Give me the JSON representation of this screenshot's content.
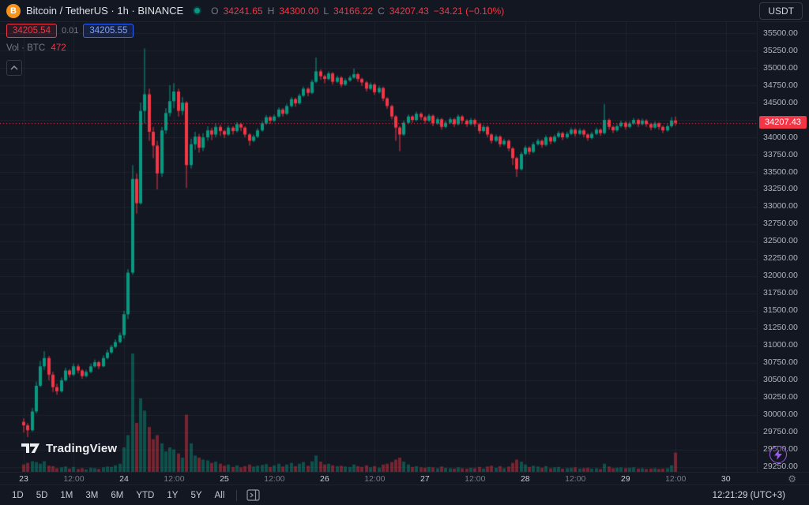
{
  "header": {
    "symbol_title": "Bitcoin / TetherUS · 1h · BINANCE",
    "currency_button": "USDT"
  },
  "legend": {
    "ohlc": {
      "o_label": "O",
      "o": "34241.65",
      "h_label": "H",
      "h": "34300.00",
      "l_label": "L",
      "l": "34166.22",
      "c_label": "C",
      "c": "34207.43",
      "change": "−34.21 (−0.10%)"
    },
    "bid": "34205.54",
    "spread": "0.01",
    "ask": "34205.55",
    "volume_label": "Vol · BTC",
    "volume_value": "472"
  },
  "price_axis": {
    "last_price": "34207.43"
  },
  "footer": {
    "ranges": [
      "1D",
      "5D",
      "1M",
      "3M",
      "6M",
      "YTD",
      "1Y",
      "5Y",
      "All"
    ],
    "clock": "12:21:29 (UTC+3)"
  },
  "logo_text": "TradingView",
  "chart_data": {
    "type": "candlestick",
    "title": "Bitcoin / TetherUS · 1h · BINANCE",
    "x_unit": "hour",
    "y_axis": {
      "min": 29250,
      "max": 35500,
      "step": 250
    },
    "last_price": 34207.43,
    "legend_position": "top-left",
    "grid": true,
    "colors": {
      "up": "#089981",
      "down": "#f23645",
      "vol_up": "rgba(8,153,129,0.45)",
      "vol_down": "rgba(242,54,69,0.45)",
      "accent_red": "#f23645",
      "accent_blue": "#2962ff",
      "bg": "#131722"
    },
    "time_ticks": [
      {
        "i": 0,
        "label": "23",
        "major": true
      },
      {
        "i": 12,
        "label": "12:00",
        "major": false
      },
      {
        "i": 24,
        "label": "24",
        "major": true
      },
      {
        "i": 36,
        "label": "12:00",
        "major": false
      },
      {
        "i": 48,
        "label": "25",
        "major": true
      },
      {
        "i": 60,
        "label": "12:00",
        "major": false
      },
      {
        "i": 72,
        "label": "26",
        "major": true
      },
      {
        "i": 84,
        "label": "12:00",
        "major": false
      },
      {
        "i": 96,
        "label": "27",
        "major": true
      },
      {
        "i": 108,
        "label": "12:00",
        "major": false
      },
      {
        "i": 120,
        "label": "28",
        "major": true
      },
      {
        "i": 132,
        "label": "12:00",
        "major": false
      },
      {
        "i": 144,
        "label": "29",
        "major": true
      },
      {
        "i": 156,
        "label": "12:00",
        "major": false
      },
      {
        "i": 168,
        "label": "30",
        "major": true
      }
    ],
    "candles": [
      [
        29900,
        29950,
        29750,
        29850,
        180
      ],
      [
        29850,
        29880,
        29680,
        29780,
        220
      ],
      [
        29780,
        30100,
        29760,
        30050,
        260
      ],
      [
        30050,
        30480,
        30020,
        30420,
        240
      ],
      [
        30420,
        30780,
        30400,
        30700,
        200
      ],
      [
        30700,
        30920,
        30650,
        30820,
        260
      ],
      [
        30820,
        30850,
        30500,
        30580,
        150
      ],
      [
        30580,
        30620,
        30330,
        30400,
        140
      ],
      [
        30400,
        30450,
        30290,
        30340,
        90
      ],
      [
        30340,
        30540,
        30320,
        30500,
        110
      ],
      [
        30500,
        30680,
        30480,
        30640,
        130
      ],
      [
        30640,
        30660,
        30540,
        30580,
        80
      ],
      [
        30580,
        30740,
        30560,
        30700,
        120
      ],
      [
        30700,
        30730,
        30600,
        30640,
        70
      ],
      [
        30640,
        30660,
        30520,
        30560,
        90
      ],
      [
        30560,
        30650,
        30540,
        30620,
        60
      ],
      [
        30620,
        30740,
        30600,
        30700,
        100
      ],
      [
        30700,
        30800,
        30680,
        30760,
        90
      ],
      [
        30760,
        30780,
        30660,
        30700,
        70
      ],
      [
        30700,
        30860,
        30690,
        30820,
        110
      ],
      [
        30820,
        30940,
        30800,
        30900,
        130
      ],
      [
        30900,
        31010,
        30880,
        30980,
        120
      ],
      [
        30980,
        31090,
        30960,
        31050,
        160
      ],
      [
        31050,
        31190,
        31030,
        31150,
        200
      ],
      [
        31150,
        31500,
        31100,
        31450,
        600
      ],
      [
        31450,
        32100,
        31380,
        32050,
        900
      ],
      [
        32050,
        33600,
        32020,
        33400,
        2900
      ],
      [
        33400,
        33480,
        32900,
        33050,
        1200
      ],
      [
        33050,
        34500,
        33030,
        34380,
        1800
      ],
      [
        34380,
        35280,
        34200,
        34620,
        1500
      ],
      [
        34620,
        34700,
        33950,
        34080,
        1100
      ],
      [
        34080,
        34150,
        33700,
        33880,
        800
      ],
      [
        33880,
        33950,
        33250,
        33480,
        900
      ],
      [
        33480,
        34150,
        33430,
        34100,
        700
      ],
      [
        34100,
        34420,
        34050,
        34350,
        500
      ],
      [
        34350,
        34750,
        34300,
        34520,
        600
      ],
      [
        34520,
        34780,
        34420,
        34660,
        550
      ],
      [
        34660,
        34700,
        34300,
        34380,
        450
      ],
      [
        34380,
        34580,
        34320,
        34500,
        350
      ],
      [
        34500,
        34520,
        33270,
        33600,
        1400
      ],
      [
        33600,
        33980,
        33550,
        33900,
        700
      ],
      [
        33900,
        34080,
        33820,
        34010,
        400
      ],
      [
        34010,
        34050,
        33780,
        33850,
        350
      ],
      [
        33850,
        34060,
        33800,
        34000,
        300
      ],
      [
        34000,
        34160,
        33950,
        34100,
        280
      ],
      [
        34100,
        34140,
        33960,
        34040,
        220
      ],
      [
        34040,
        34200,
        34000,
        34150,
        250
      ],
      [
        34150,
        34180,
        34020,
        34090,
        200
      ],
      [
        34090,
        34110,
        33990,
        34040,
        150
      ],
      [
        34040,
        34170,
        34020,
        34140,
        180
      ],
      [
        34140,
        34160,
        34040,
        34090,
        120
      ],
      [
        34090,
        34220,
        34070,
        34190,
        160
      ],
      [
        34190,
        34210,
        34090,
        34140,
        110
      ],
      [
        34140,
        34160,
        34000,
        34040,
        140
      ],
      [
        34040,
        34060,
        33880,
        33950,
        180
      ],
      [
        33950,
        34040,
        33930,
        34010,
        130
      ],
      [
        34010,
        34130,
        33990,
        34100,
        150
      ],
      [
        34100,
        34230,
        34080,
        34200,
        170
      ],
      [
        34200,
        34320,
        34180,
        34290,
        190
      ],
      [
        34290,
        34310,
        34190,
        34240,
        120
      ],
      [
        34240,
        34330,
        34220,
        34300,
        160
      ],
      [
        34300,
        34430,
        34280,
        34400,
        200
      ],
      [
        34400,
        34420,
        34300,
        34340,
        130
      ],
      [
        34340,
        34480,
        34320,
        34450,
        180
      ],
      [
        34450,
        34580,
        34430,
        34550,
        220
      ],
      [
        34550,
        34570,
        34440,
        34490,
        140
      ],
      [
        34490,
        34630,
        34470,
        34600,
        200
      ],
      [
        34600,
        34730,
        34580,
        34700,
        240
      ],
      [
        34700,
        34720,
        34590,
        34640,
        150
      ],
      [
        34640,
        34830,
        34620,
        34800,
        260
      ],
      [
        34800,
        35150,
        34780,
        34950,
        400
      ],
      [
        34950,
        34980,
        34830,
        34880,
        250
      ],
      [
        34880,
        34900,
        34780,
        34840,
        180
      ],
      [
        34840,
        34950,
        34820,
        34920,
        200
      ],
      [
        34920,
        34940,
        34760,
        34800,
        160
      ],
      [
        34800,
        34890,
        34780,
        34860,
        140
      ],
      [
        34860,
        34880,
        34720,
        34760,
        150
      ],
      [
        34760,
        34850,
        34740,
        34820,
        130
      ],
      [
        34820,
        34890,
        34800,
        34860,
        120
      ],
      [
        34860,
        34990,
        34840,
        34910,
        180
      ],
      [
        34910,
        34930,
        34800,
        34840,
        140
      ],
      [
        34840,
        34860,
        34740,
        34790,
        120
      ],
      [
        34790,
        34810,
        34660,
        34700,
        160
      ],
      [
        34700,
        34790,
        34680,
        34760,
        110
      ],
      [
        34760,
        34780,
        34610,
        34650,
        140
      ],
      [
        34650,
        34740,
        34630,
        34710,
        100
      ],
      [
        34710,
        34730,
        34520,
        34560,
        180
      ],
      [
        34560,
        34580,
        34410,
        34450,
        200
      ],
      [
        34450,
        34470,
        34260,
        34300,
        240
      ],
      [
        34300,
        34320,
        33950,
        34140,
        300
      ],
      [
        34140,
        34160,
        33800,
        34040,
        350
      ],
      [
        34040,
        34240,
        34020,
        34210,
        250
      ],
      [
        34210,
        34330,
        34190,
        34300,
        180
      ],
      [
        34300,
        34320,
        34210,
        34250,
        120
      ],
      [
        34250,
        34370,
        34230,
        34340,
        140
      ],
      [
        34340,
        34360,
        34250,
        34290,
        110
      ],
      [
        34290,
        34310,
        34200,
        34240,
        100
      ],
      [
        34240,
        34340,
        34220,
        34310,
        120
      ],
      [
        34310,
        34330,
        34160,
        34200,
        110
      ],
      [
        34200,
        34290,
        34180,
        34260,
        90
      ],
      [
        34260,
        34280,
        34110,
        34150,
        130
      ],
      [
        34150,
        34240,
        34130,
        34210,
        100
      ],
      [
        34210,
        34290,
        34190,
        34260,
        90
      ],
      [
        34260,
        34280,
        34150,
        34190,
        80
      ],
      [
        34190,
        34330,
        34170,
        34300,
        110
      ],
      [
        34300,
        34320,
        34200,
        34240,
        90
      ],
      [
        34240,
        34260,
        34150,
        34190,
        80
      ],
      [
        34190,
        34280,
        34170,
        34250,
        100
      ],
      [
        34250,
        34270,
        34150,
        34190,
        90
      ],
      [
        34190,
        34210,
        34050,
        34090,
        120
      ],
      [
        34090,
        34180,
        34070,
        34150,
        80
      ],
      [
        34150,
        34170,
        34000,
        34040,
        130
      ],
      [
        34040,
        34060,
        33910,
        33950,
        150
      ],
      [
        33950,
        34040,
        33930,
        34010,
        100
      ],
      [
        34010,
        34030,
        33860,
        33900,
        140
      ],
      [
        33900,
        33980,
        33880,
        33950,
        90
      ],
      [
        33950,
        33970,
        33800,
        33840,
        130
      ],
      [
        33840,
        33860,
        33600,
        33700,
        220
      ],
      [
        33700,
        33720,
        33430,
        33540,
        300
      ],
      [
        33540,
        33790,
        33520,
        33760,
        250
      ],
      [
        33760,
        33880,
        33740,
        33850,
        180
      ],
      [
        33850,
        33870,
        33750,
        33790,
        120
      ],
      [
        33790,
        33930,
        33770,
        33900,
        150
      ],
      [
        33900,
        33980,
        33880,
        33950,
        130
      ],
      [
        33950,
        33970,
        33850,
        33890,
        100
      ],
      [
        33890,
        34030,
        33870,
        34000,
        140
      ],
      [
        34000,
        34020,
        33900,
        33940,
        90
      ],
      [
        33940,
        34040,
        33920,
        34010,
        110
      ],
      [
        34010,
        34090,
        33990,
        34060,
        120
      ],
      [
        34060,
        34080,
        33960,
        34000,
        80
      ],
      [
        34000,
        34080,
        33980,
        34050,
        90
      ],
      [
        34050,
        34140,
        34030,
        34110,
        100
      ],
      [
        34110,
        34130,
        34010,
        34050,
        110
      ],
      [
        34050,
        34130,
        34030,
        34100,
        80
      ],
      [
        34100,
        34120,
        34000,
        34040,
        90
      ],
      [
        34040,
        34060,
        33950,
        33990,
        100
      ],
      [
        33990,
        34080,
        33970,
        34050,
        80
      ],
      [
        34050,
        34140,
        34030,
        34110,
        90
      ],
      [
        34110,
        34130,
        34020,
        34060,
        70
      ],
      [
        34060,
        34480,
        34040,
        34250,
        200
      ],
      [
        34250,
        34270,
        34110,
        34150,
        130
      ],
      [
        34150,
        34170,
        34060,
        34100,
        90
      ],
      [
        34100,
        34190,
        34080,
        34160,
        100
      ],
      [
        34160,
        34240,
        34140,
        34210,
        110
      ],
      [
        34210,
        34230,
        34110,
        34150,
        90
      ],
      [
        34150,
        34230,
        34130,
        34200,
        100
      ],
      [
        34200,
        34280,
        34180,
        34250,
        110
      ],
      [
        34250,
        34270,
        34150,
        34190,
        80
      ],
      [
        34190,
        34270,
        34170,
        34240,
        90
      ],
      [
        34240,
        34260,
        34150,
        34190,
        70
      ],
      [
        34190,
        34210,
        34100,
        34140,
        80
      ],
      [
        34140,
        34230,
        34120,
        34200,
        90
      ],
      [
        34200,
        34220,
        34110,
        34150,
        70
      ],
      [
        34150,
        34170,
        34060,
        34100,
        80
      ],
      [
        34100,
        34190,
        34080,
        34160,
        90
      ],
      [
        34160,
        34290,
        34140,
        34241.65,
        160
      ],
      [
        34241.65,
        34300,
        34166.22,
        34207.43,
        472
      ]
    ]
  }
}
